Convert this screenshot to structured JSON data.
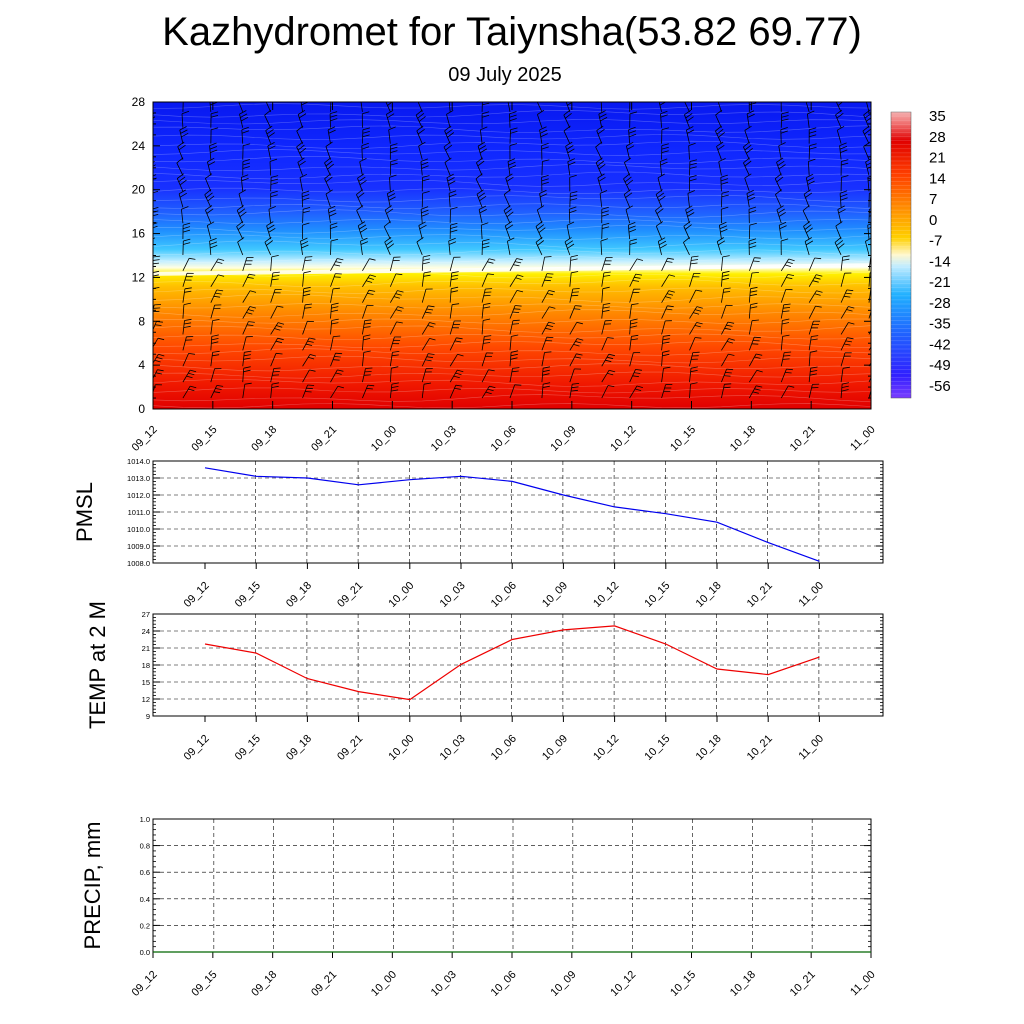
{
  "title": "Kazhydromet for Taiynsha(53.82 69.77)",
  "subtitle": "09 July 2025",
  "chart_data": [
    {
      "type": "heatmap",
      "name": "vertical temperature cross-section with wind barbs",
      "x_ticks": [
        "09_12",
        "09_15",
        "09_18",
        "09_21",
        "10_00",
        "10_03",
        "10_06",
        "10_09",
        "10_12",
        "10_15",
        "10_18",
        "10_21",
        "11_00"
      ],
      "y_ticks": [
        0,
        4,
        8,
        12,
        16,
        20,
        24,
        28
      ],
      "ylim": [
        0,
        28
      ],
      "colorbar_labels": [
        35,
        28,
        21,
        14,
        7,
        0,
        -7,
        -14,
        -21,
        -28,
        -35,
        -42,
        -49,
        -56
      ],
      "freezing_level_start": 12.5,
      "freezing_level_end": 13.3
    },
    {
      "type": "line",
      "ylabel": "PMSL",
      "color": "#0000ee",
      "x": [
        "09_12",
        "09_15",
        "09_18",
        "09_21",
        "10_00",
        "10_03",
        "10_06",
        "10_09",
        "10_12",
        "10_15",
        "10_18",
        "10_21",
        "11_00"
      ],
      "values": [
        1013.6,
        1013.1,
        1013.0,
        1012.6,
        1012.9,
        1013.1,
        1012.8,
        1012.0,
        1011.3,
        1010.9,
        1010.4,
        1009.2,
        1008.1
      ],
      "ylim": [
        1008.0,
        1014.0
      ],
      "y_ticks": [
        "1008.0",
        "1009.0",
        "1010.0",
        "1011.0",
        "1012.0",
        "1013.0",
        "1014.0"
      ]
    },
    {
      "type": "line",
      "ylabel": "TEMP at 2 M",
      "color": "#ee0000",
      "x": [
        "09_12",
        "09_15",
        "09_18",
        "09_21",
        "10_00",
        "10_03",
        "10_06",
        "10_09",
        "10_12",
        "10_15",
        "10_18",
        "10_21",
        "11_00"
      ],
      "values": [
        21.7,
        20.1,
        15.6,
        13.3,
        11.9,
        18.1,
        22.5,
        24.2,
        24.9,
        21.7,
        17.3,
        16.3,
        19.4
      ],
      "ylim": [
        9,
        27
      ],
      "y_ticks": [
        "9",
        "12",
        "15",
        "18",
        "21",
        "24",
        "27"
      ]
    },
    {
      "type": "line",
      "ylabel": "PRECIP, mm",
      "color": "#006600",
      "x": [
        "09_12",
        "09_15",
        "09_18",
        "09_21",
        "10_00",
        "10_03",
        "10_06",
        "10_09",
        "10_12",
        "10_15",
        "10_18",
        "10_21",
        "11_00"
      ],
      "values": [
        0,
        0,
        0,
        0,
        0,
        0,
        0,
        0,
        0,
        0,
        0,
        0,
        0
      ],
      "ylim": [
        0,
        1
      ],
      "y_ticks": [
        "0.0",
        "0.2",
        "0.4",
        "0.6",
        "0.8",
        "1.0"
      ]
    }
  ]
}
